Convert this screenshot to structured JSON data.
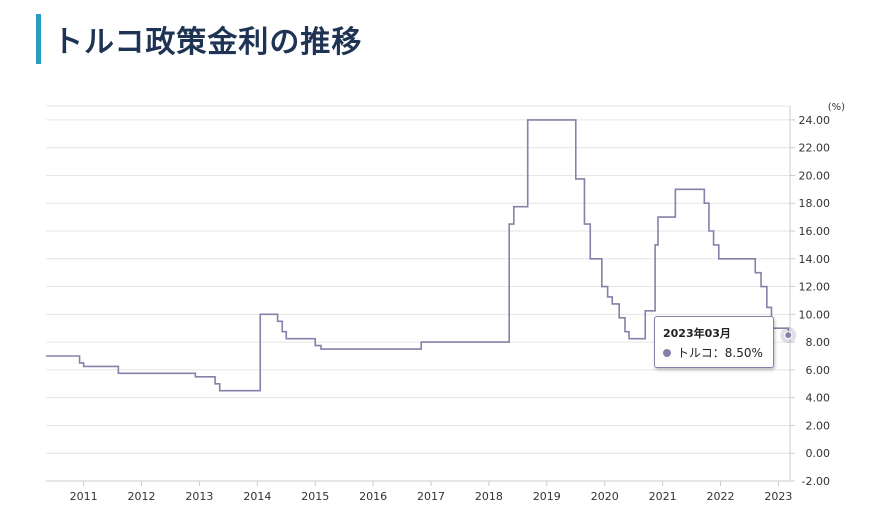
{
  "page": {
    "title": "トルコ政策金利の推移"
  },
  "chart_data": {
    "type": "line",
    "unit": "(%)",
    "y_ticks": [
      24,
      22,
      20,
      18,
      16,
      14,
      12,
      10,
      8,
      6,
      4,
      2,
      0,
      -2
    ],
    "x_ticks": [
      "2011",
      "2012",
      "2013",
      "2014",
      "2015",
      "2016",
      "2017",
      "2018",
      "2019",
      "2020",
      "2021",
      "2022",
      "2023"
    ],
    "ylim": [
      -2,
      25
    ],
    "xlim": [
      2010.35,
      2023.2
    ],
    "grid": true,
    "series": [
      {
        "name": "トルコ",
        "color": "#8a7fa8",
        "step": true,
        "points": [
          [
            2010.35,
            7.0
          ],
          [
            2010.93,
            6.5
          ],
          [
            2011.0,
            6.25
          ],
          [
            2011.6,
            5.75
          ],
          [
            2012.93,
            5.5
          ],
          [
            2013.27,
            5.0
          ],
          [
            2013.35,
            4.5
          ],
          [
            2014.05,
            10.0
          ],
          [
            2014.35,
            9.5
          ],
          [
            2014.43,
            8.75
          ],
          [
            2014.5,
            8.25
          ],
          [
            2015.0,
            7.75
          ],
          [
            2015.1,
            7.5
          ],
          [
            2016.83,
            8.0
          ],
          [
            2018.35,
            16.5
          ],
          [
            2018.43,
            17.75
          ],
          [
            2018.67,
            24.0
          ],
          [
            2019.5,
            19.75
          ],
          [
            2019.65,
            16.5
          ],
          [
            2019.75,
            14.0
          ],
          [
            2019.95,
            12.0
          ],
          [
            2020.05,
            11.25
          ],
          [
            2020.13,
            10.75
          ],
          [
            2020.25,
            9.75
          ],
          [
            2020.35,
            8.75
          ],
          [
            2020.42,
            8.25
          ],
          [
            2020.7,
            10.25
          ],
          [
            2020.87,
            15.0
          ],
          [
            2020.92,
            17.0
          ],
          [
            2021.22,
            19.0
          ],
          [
            2021.72,
            18.0
          ],
          [
            2021.8,
            16.0
          ],
          [
            2021.88,
            15.0
          ],
          [
            2021.97,
            14.0
          ],
          [
            2022.6,
            13.0
          ],
          [
            2022.7,
            12.0
          ],
          [
            2022.8,
            10.5
          ],
          [
            2022.88,
            9.0
          ],
          [
            2023.17,
            8.5
          ]
        ]
      }
    ],
    "tooltip": {
      "date": "2023年03月",
      "label": "トルコ：8.50%"
    }
  }
}
